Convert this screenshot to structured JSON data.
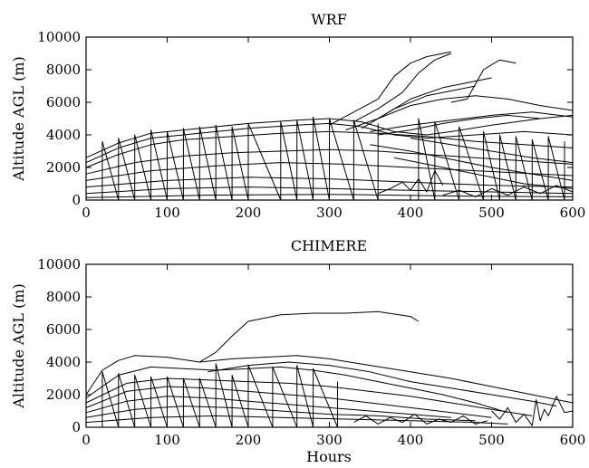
{
  "chart_data": [
    {
      "type": "line",
      "title": "WRF",
      "xlabel": "",
      "ylabel": "Altitude AGL (m)",
      "xlim": [
        0,
        600
      ],
      "ylim": [
        0,
        10000
      ],
      "xticks": [
        0,
        100,
        200,
        300,
        400,
        500,
        600
      ],
      "yticks": [
        0,
        2000,
        4000,
        6000,
        8000,
        10000
      ],
      "grid": false,
      "series": [
        {
          "x": [
            0,
            40,
            80,
            120,
            160,
            200,
            260,
            300,
            340,
            380,
            420,
            450,
            500,
            560,
            600
          ],
          "y": [
            2600,
            3500,
            4100,
            4300,
            4500,
            4700,
            4900,
            5000,
            4800,
            4200,
            4000,
            4200,
            4600,
            5000,
            5200
          ]
        },
        {
          "x": [
            0,
            40,
            80,
            120,
            160,
            200,
            260,
            300,
            340,
            380,
            420,
            480,
            540,
            600
          ],
          "y": [
            2300,
            3200,
            3800,
            4000,
            4200,
            4400,
            4600,
            4700,
            4500,
            4000,
            3800,
            4000,
            4200,
            4000
          ]
        },
        {
          "x": [
            0,
            40,
            80,
            120,
            180,
            240,
            300,
            360,
            420,
            480,
            540,
            600
          ],
          "y": [
            2000,
            2800,
            3400,
            3700,
            3900,
            4100,
            4200,
            4100,
            3900,
            3600,
            3400,
            3200
          ]
        },
        {
          "x": [
            0,
            60,
            120,
            180,
            240,
            300,
            360,
            420,
            480,
            540,
            600
          ],
          "y": [
            1600,
            2300,
            2700,
            2900,
            3000,
            3100,
            3000,
            2800,
            2600,
            2400,
            2200
          ]
        },
        {
          "x": [
            0,
            80,
            160,
            240,
            320,
            400,
            480,
            560,
            600
          ],
          "y": [
            1200,
            1800,
            2100,
            2300,
            2200,
            2000,
            1800,
            1600,
            1500
          ]
        },
        {
          "x": [
            0,
            100,
            200,
            300,
            400,
            500,
            600
          ],
          "y": [
            800,
            1200,
            1400,
            1300,
            1100,
            900,
            800
          ]
        },
        {
          "x": [
            0,
            100,
            200,
            300,
            400,
            500,
            600
          ],
          "y": [
            400,
            700,
            800,
            700,
            600,
            500,
            400
          ]
        },
        {
          "x": [
            0,
            150,
            300,
            450,
            600
          ],
          "y": [
            150,
            300,
            350,
            250,
            200
          ]
        },
        {
          "x": [
            300,
            330,
            360,
            380,
            400,
            420,
            440,
            450
          ],
          "y": [
            4600,
            5400,
            6200,
            7600,
            8400,
            8800,
            9000,
            9100
          ]
        },
        {
          "x": [
            330,
            360,
            390,
            410,
            430,
            450
          ],
          "y": [
            4800,
            5600,
            6600,
            7800,
            8600,
            9000
          ]
        },
        {
          "x": [
            450,
            470,
            490,
            510,
            530
          ],
          "y": [
            6000,
            6200,
            8000,
            8600,
            8400
          ]
        },
        {
          "x": [
            360,
            400,
            440,
            480,
            500
          ],
          "y": [
            5000,
            6200,
            6900,
            7300,
            7500
          ]
        },
        {
          "x": [
            340,
            380,
            420,
            460,
            480
          ],
          "y": [
            4400,
            5600,
            6400,
            6800,
            7000
          ]
        },
        {
          "x": [
            320,
            360,
            400,
            440,
            480,
            520,
            560,
            600
          ],
          "y": [
            4300,
            5000,
            5800,
            6200,
            6400,
            6200,
            5800,
            5500
          ]
        },
        {
          "x": [
            350,
            400,
            450,
            500,
            550,
            600
          ],
          "y": [
            4200,
            4600,
            4900,
            5200,
            5400,
            5100
          ]
        },
        {
          "x": [
            360,
            400,
            440,
            480,
            520,
            560
          ],
          "y": [
            4000,
            4300,
            4700,
            5000,
            5200,
            5000
          ]
        },
        {
          "x": [
            400,
            450,
            500,
            550,
            600
          ],
          "y": [
            3800,
            3400,
            3000,
            2600,
            2300
          ]
        },
        {
          "x": [
            350,
            400,
            450,
            500,
            550,
            600
          ],
          "y": [
            3400,
            3000,
            2500,
            2000,
            1600,
            1200
          ]
        },
        {
          "x": [
            380,
            420,
            460,
            500,
            540,
            580,
            600
          ],
          "y": [
            2600,
            2200,
            1800,
            1400,
            1000,
            800,
            700
          ]
        },
        {
          "x": [
            20,
            20,
            40,
            40,
            60,
            60,
            80,
            80,
            100,
            100,
            120,
            120,
            140,
            140,
            160,
            160,
            180,
            180,
            200,
            200,
            240,
            240,
            260,
            260,
            280,
            280,
            300,
            300,
            330,
            330,
            360,
            360
          ],
          "y": [
            0,
            3600,
            0,
            3800,
            0,
            4000,
            0,
            4300,
            0,
            4200,
            0,
            4400,
            0,
            4500,
            0,
            4600,
            0,
            4500,
            0,
            4700,
            0,
            4800,
            0,
            4900,
            0,
            5100,
            0,
            5000,
            0,
            4900,
            0,
            4700
          ]
        },
        {
          "x": [
            410,
            410,
            430,
            430,
            460,
            460,
            490,
            490,
            510,
            510,
            530,
            530,
            550,
            550,
            570,
            570,
            590,
            590
          ],
          "y": [
            0,
            5000,
            0,
            4800,
            0,
            4500,
            0,
            4200,
            0,
            4000,
            0,
            3900,
            0,
            3700,
            0,
            3900,
            0,
            3600
          ]
        },
        {
          "x": [
            360,
            375,
            390,
            400,
            410,
            420,
            430,
            440
          ],
          "y": [
            400,
            700,
            1100,
            600,
            1300,
            500,
            1800,
            900
          ]
        },
        {
          "x": [
            440,
            460,
            480,
            500,
            520,
            540,
            560,
            580,
            600
          ],
          "y": [
            300,
            600,
            200,
            700,
            300,
            800,
            400,
            900,
            500
          ]
        }
      ]
    },
    {
      "type": "line",
      "title": "CHIMERE",
      "xlabel": "Hours",
      "ylabel": "Altitude AGL (m)",
      "xlim": [
        0,
        600
      ],
      "ylim": [
        0,
        10000
      ],
      "xticks": [
        0,
        100,
        200,
        300,
        400,
        500,
        600
      ],
      "yticks": [
        0,
        2000,
        4000,
        6000,
        8000,
        10000
      ],
      "grid": false,
      "series": [
        {
          "x": [
            140,
            160,
            180,
            200,
            240,
            280,
            320,
            360,
            400,
            410
          ],
          "y": [
            4000,
            4600,
            5600,
            6500,
            6900,
            7000,
            7000,
            7100,
            6800,
            6500
          ]
        },
        {
          "x": [
            0,
            20,
            40,
            60,
            100,
            140,
            180,
            220,
            260,
            300,
            350,
            400,
            450,
            500,
            550,
            600
          ],
          "y": [
            2000,
            3500,
            4100,
            4400,
            4300,
            4000,
            4200,
            4300,
            4400,
            4200,
            3800,
            3400,
            3000,
            2500,
            2000,
            1500
          ]
        },
        {
          "x": [
            0,
            40,
            80,
            120,
            160,
            200,
            240,
            280,
            320,
            360,
            400,
            440,
            480,
            520
          ],
          "y": [
            1800,
            3200,
            3700,
            3600,
            3500,
            3600,
            3700,
            3500,
            3200,
            2800,
            2400,
            2000,
            1500,
            900
          ]
        },
        {
          "x": [
            150,
            200,
            250,
            300,
            350,
            400,
            450,
            500,
            550,
            580
          ],
          "y": [
            3400,
            3800,
            4000,
            3800,
            3400,
            2800,
            2400,
            2000,
            1600,
            1300
          ]
        },
        {
          "x": [
            0,
            50,
            100,
            150,
            200,
            250,
            300,
            350,
            400,
            450,
            500,
            550
          ],
          "y": [
            1500,
            2700,
            3000,
            2900,
            2800,
            2700,
            2500,
            2200,
            1900,
            1500,
            1100,
            700
          ]
        },
        {
          "x": [
            0,
            50,
            100,
            150,
            200,
            250,
            300,
            350,
            400,
            450,
            500
          ],
          "y": [
            1200,
            2200,
            2500,
            2400,
            2200,
            2000,
            1800,
            1500,
            1200,
            900,
            600
          ]
        },
        {
          "x": [
            0,
            50,
            100,
            150,
            200,
            250,
            300,
            350,
            400,
            450
          ],
          "y": [
            900,
            1600,
            1900,
            1800,
            1600,
            1400,
            1200,
            1000,
            800,
            600
          ]
        },
        {
          "x": [
            0,
            60,
            120,
            180,
            240,
            300,
            360,
            420,
            480
          ],
          "y": [
            600,
            1100,
            1300,
            1200,
            1000,
            800,
            700,
            500,
            400
          ]
        },
        {
          "x": [
            0,
            80,
            160,
            240,
            320,
            400,
            480,
            520
          ],
          "y": [
            300,
            600,
            700,
            600,
            500,
            400,
            300,
            200
          ]
        },
        {
          "x": [
            20,
            20,
            40,
            40,
            60,
            60,
            80,
            80,
            100,
            100,
            120,
            120,
            140,
            140,
            160,
            160,
            180,
            180,
            200,
            200,
            230,
            230,
            260,
            260,
            280,
            280,
            310,
            310
          ],
          "y": [
            0,
            3400,
            0,
            3300,
            0,
            3200,
            0,
            3100,
            0,
            3100,
            0,
            3000,
            0,
            3000,
            0,
            3900,
            0,
            3200,
            0,
            3800,
            0,
            3700,
            0,
            3800,
            0,
            3600,
            0,
            2800
          ]
        },
        {
          "x": [
            330,
            345,
            360,
            375,
            390,
            405,
            420,
            435,
            450,
            465,
            480,
            495
          ],
          "y": [
            300,
            700,
            200,
            600,
            300,
            800,
            200,
            500,
            300,
            700,
            200,
            400
          ]
        },
        {
          "x": [
            500,
            510,
            520,
            530,
            540,
            550,
            555,
            560,
            565,
            570,
            580,
            590,
            600
          ],
          "y": [
            1000,
            500,
            1200,
            300,
            800,
            100,
            1700,
            400,
            1100,
            700,
            1900,
            900,
            1000
          ]
        }
      ]
    }
  ]
}
